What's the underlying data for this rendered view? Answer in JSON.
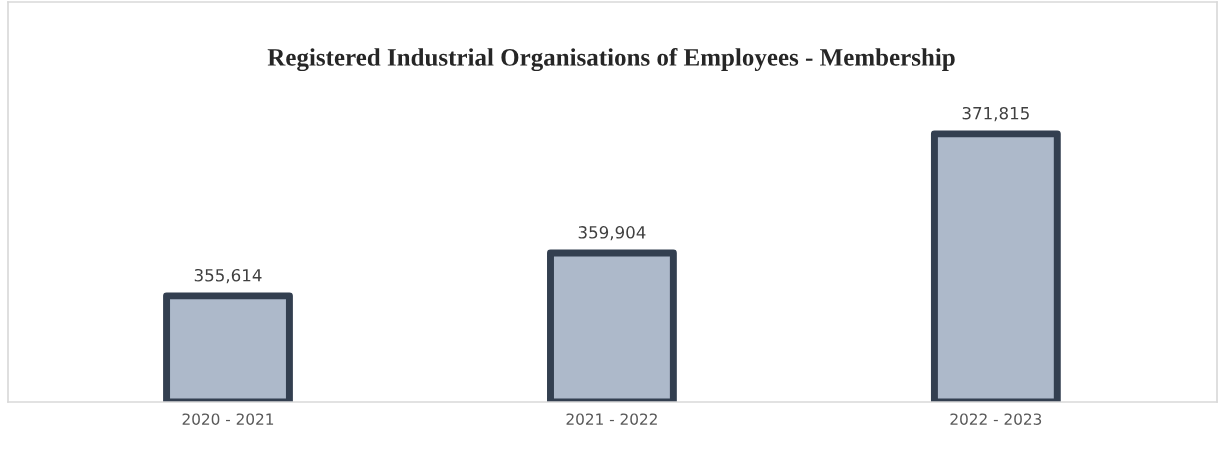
{
  "chart_data": {
    "type": "bar",
    "title": "Registered Industrial Organisations of Employees - Membership",
    "categories": [
      "2020 - 2021",
      "2021 - 2022",
      "2022 - 2023"
    ],
    "values": [
      355614,
      359904,
      371815
    ],
    "color": "#adb9ca",
    "value_labels": [
      "355,614",
      "359,904",
      "371,815"
    ],
    "ylim": [
      345000,
      385000
    ],
    "tick_labels": "x"
  }
}
